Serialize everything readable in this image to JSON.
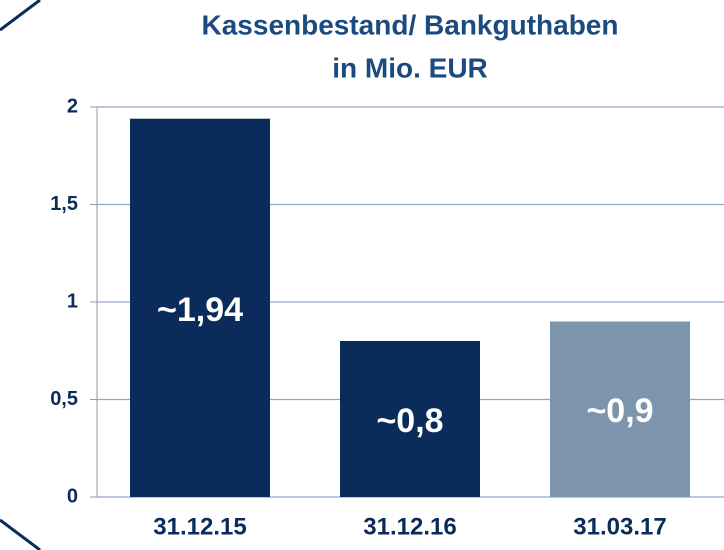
{
  "chart_data": {
    "type": "bar",
    "title": [
      "Kassenbestand/ Bankguthaben",
      "in Mio. EUR"
    ],
    "categories": [
      "31.12.15",
      "31.12.16",
      "31.03.17"
    ],
    "values": [
      1.94,
      0.8,
      0.9
    ],
    "value_labels": [
      "~1,94",
      "~0,8",
      "~0,9"
    ],
    "colors": [
      "#0b2b5b",
      "#0b2b5b",
      "#7c95ad"
    ],
    "ylim": [
      0,
      2
    ],
    "yticks": [
      0,
      {
        "value": 0.5,
        "label": "0,5"
      },
      1,
      {
        "value": 1.5,
        "label": "1,5"
      },
      2
    ],
    "grid": true
  }
}
